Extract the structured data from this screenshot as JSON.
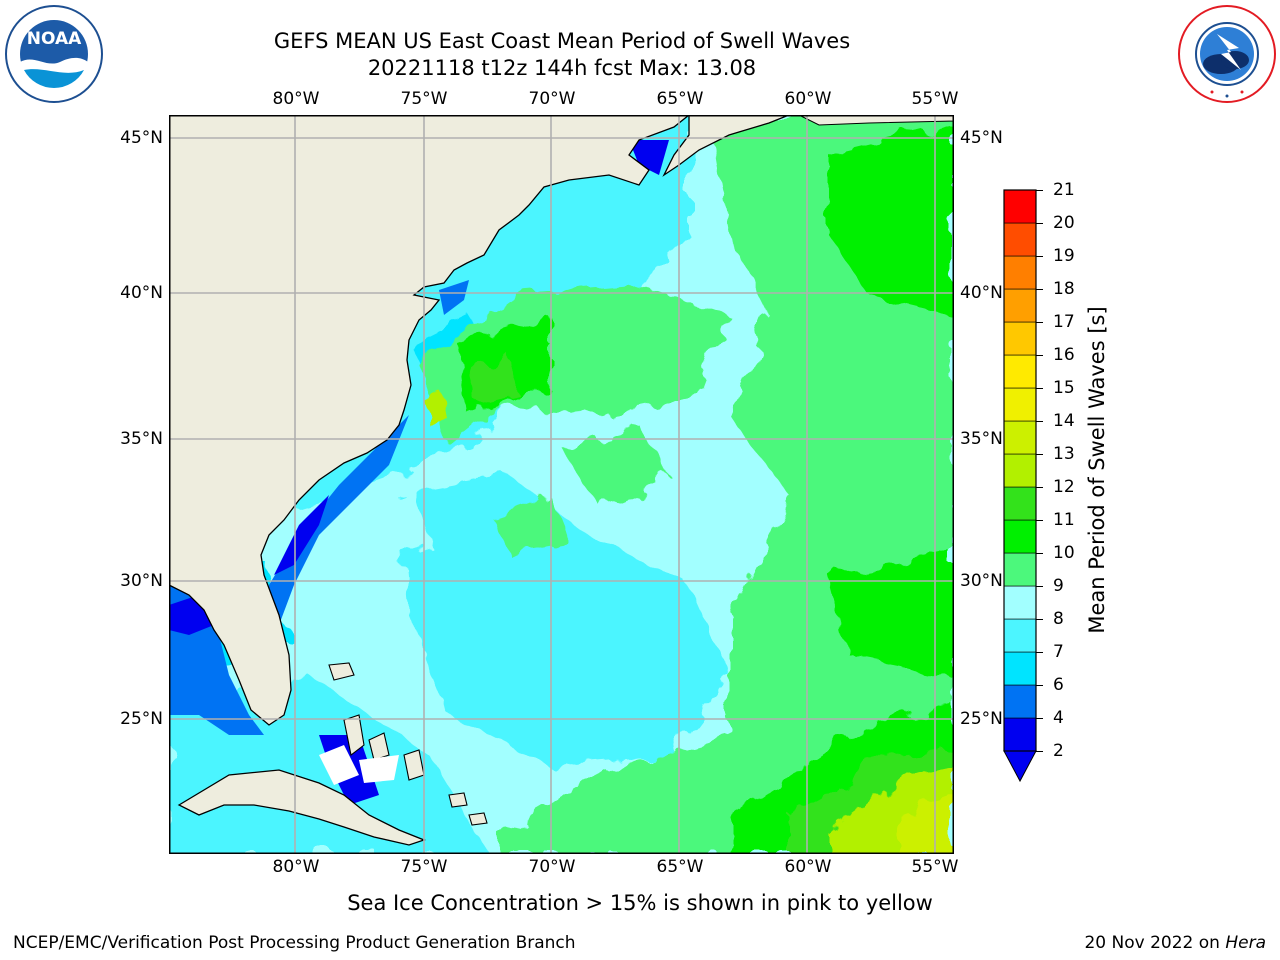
{
  "title": {
    "line1": "GEFS MEAN US East Coast Mean Period of Swell Waves",
    "line2": "20221118 t12z 144h fcst   Max: 13.08"
  },
  "logos": {
    "left": {
      "name": "noaa-logo",
      "text": "NOAA",
      "ring_text": "NATIONAL OCEANIC AND ATMOSPHERIC ADMINISTRATION · U.S. DEPARTMENT OF COMMERCE"
    },
    "right": {
      "name": "nws-logo",
      "ring_text": "NATIONAL WEATHER SERVICE"
    }
  },
  "map": {
    "lon_labels": [
      "80°W",
      "75°W",
      "70°W",
      "65°W",
      "60°W",
      "55°W"
    ],
    "lat_labels": [
      "45°N",
      "40°N",
      "35°N",
      "30°N",
      "25°N"
    ],
    "lon_range": [
      "85°W",
      "54.5°W"
    ],
    "lat_range": [
      "20.5°N",
      "46°N"
    ],
    "land_color": "#eeedde",
    "gridlines": true
  },
  "colorbar": {
    "title": "Mean Period of Swell Waves [s]",
    "levels": [
      "2",
      "4",
      "6",
      "7",
      "8",
      "9",
      "10",
      "11",
      "12",
      "13",
      "14",
      "15",
      "16",
      "17",
      "18",
      "19",
      "20",
      "21"
    ],
    "colors": [
      "#0000f0",
      "#0073f3",
      "#00e4ff",
      "#4cf5ff",
      "#a2ffff",
      "#4cf87c",
      "#00f000",
      "#33e21b",
      "#b2f000",
      "#ccf000",
      "#f0f000",
      "#ffea00",
      "#ffc800",
      "#ff9f00",
      "#ff7f00",
      "#ff4d00",
      "#ff0000"
    ],
    "under_color": "#0000f0"
  },
  "subtitle": "Sea Ice Concentration > 15% is shown in pink to yellow",
  "footer": {
    "left": "NCEP/EMC/Verification Post Processing Product Generation Branch",
    "right_date": "20 Nov 2022 on ",
    "right_host": "Hera"
  }
}
